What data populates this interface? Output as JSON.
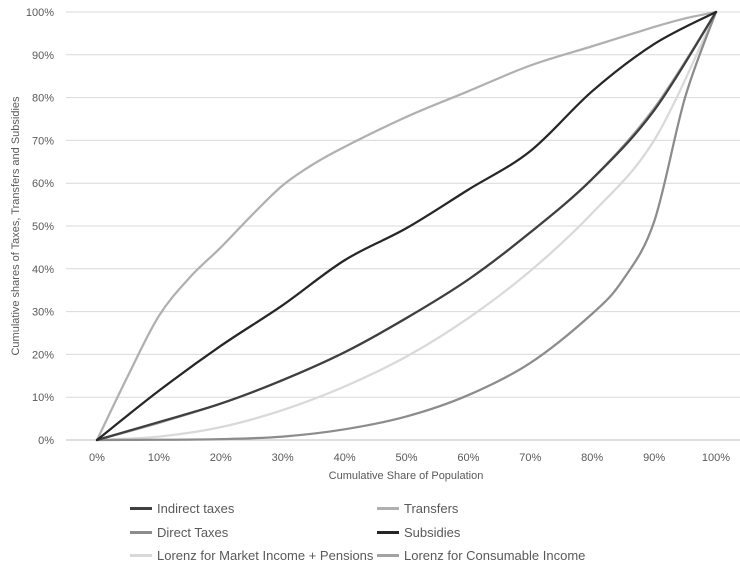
{
  "chart_data": {
    "type": "line",
    "xlabel": "Cumulative Share of Population",
    "ylabel": "Cumulative shares of Taxes, Transfers and Subsidies",
    "xlim": [
      0,
      100
    ],
    "ylim": [
      0,
      100
    ],
    "x_ticks": [
      "0%",
      "10%",
      "20%",
      "30%",
      "40%",
      "50%",
      "60%",
      "70%",
      "80%",
      "90%",
      "100%"
    ],
    "y_ticks": [
      "0%",
      "10%",
      "20%",
      "30%",
      "40%",
      "50%",
      "60%",
      "70%",
      "80%",
      "90%",
      "100%"
    ],
    "grid": "horizontal",
    "legend_position": "bottom",
    "series": [
      {
        "name": "Indirect taxes",
        "color": "#3f3f3f",
        "x": [
          0,
          10,
          20,
          30,
          40,
          50,
          60,
          70,
          80,
          90,
          100
        ],
        "y": [
          0,
          4.2,
          8.5,
          14,
          20.5,
          28.5,
          37.5,
          48.5,
          61,
          77,
          100
        ]
      },
      {
        "name": "Transfers",
        "color": "#b0b0b0",
        "x": [
          0,
          5,
          10,
          15,
          20,
          25,
          30,
          35,
          40,
          50,
          60,
          70,
          80,
          90,
          95,
          100
        ],
        "y": [
          0,
          15,
          29,
          38,
          45,
          52.5,
          59.5,
          64.5,
          68.5,
          75.5,
          81.5,
          87.5,
          92,
          96.5,
          98.5,
          100
        ]
      },
      {
        "name": "Direct Taxes",
        "color": "#8c8c8c",
        "x": [
          0,
          10,
          20,
          30,
          40,
          50,
          60,
          70,
          80,
          85,
          90,
          95,
          100
        ],
        "y": [
          0,
          0.05,
          0.2,
          0.8,
          2.5,
          5.5,
          10.5,
          18,
          29.5,
          37.5,
          51,
          80,
          100
        ]
      },
      {
        "name": "Subsidies",
        "color": "#262626",
        "x": [
          0,
          10,
          20,
          30,
          40,
          50,
          60,
          70,
          80,
          90,
          100
        ],
        "y": [
          0,
          11.5,
          22,
          31.5,
          42,
          49.5,
          58.5,
          67.5,
          81.5,
          92.5,
          100
        ]
      },
      {
        "name": "Lorenz for Market Income + Pensions",
        "color": "#d9d9d9",
        "x": [
          0,
          10,
          20,
          30,
          40,
          50,
          60,
          70,
          80,
          90,
          100
        ],
        "y": [
          0,
          0.8,
          3,
          7,
          12.5,
          19.5,
          28.5,
          39.5,
          53,
          70,
          100
        ]
      },
      {
        "name": "Lorenz for Consumable Income",
        "color": "#a3a3a3",
        "x": [
          0,
          10,
          20,
          30,
          40,
          50,
          60,
          70,
          80,
          90,
          100
        ],
        "y": [
          0,
          4,
          8.5,
          14,
          20.5,
          28.5,
          37.5,
          48.5,
          61,
          77.5,
          100
        ]
      }
    ]
  }
}
